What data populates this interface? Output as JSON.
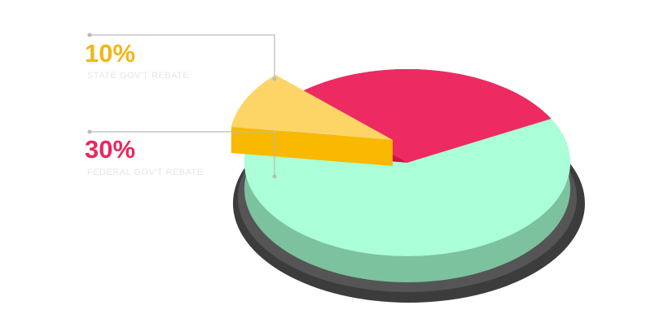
{
  "chart_data": {
    "type": "pie",
    "categories": [
      "STATE GOV'T REBATE",
      "FEDERAL GOV'T REBATE",
      null
    ],
    "values": [
      10,
      30,
      60
    ],
    "value_labels": [
      "10%",
      "30%",
      null
    ],
    "colors": [
      "#fdd567",
      "#ee2a62",
      "#aaffd8"
    ],
    "side_colors": [
      "#f8b900",
      "#c8173f",
      "#7cc29f"
    ],
    "label_colors": [
      "#f2b619",
      "#e8285e",
      null
    ],
    "exploded": [
      true,
      false,
      false
    ]
  }
}
